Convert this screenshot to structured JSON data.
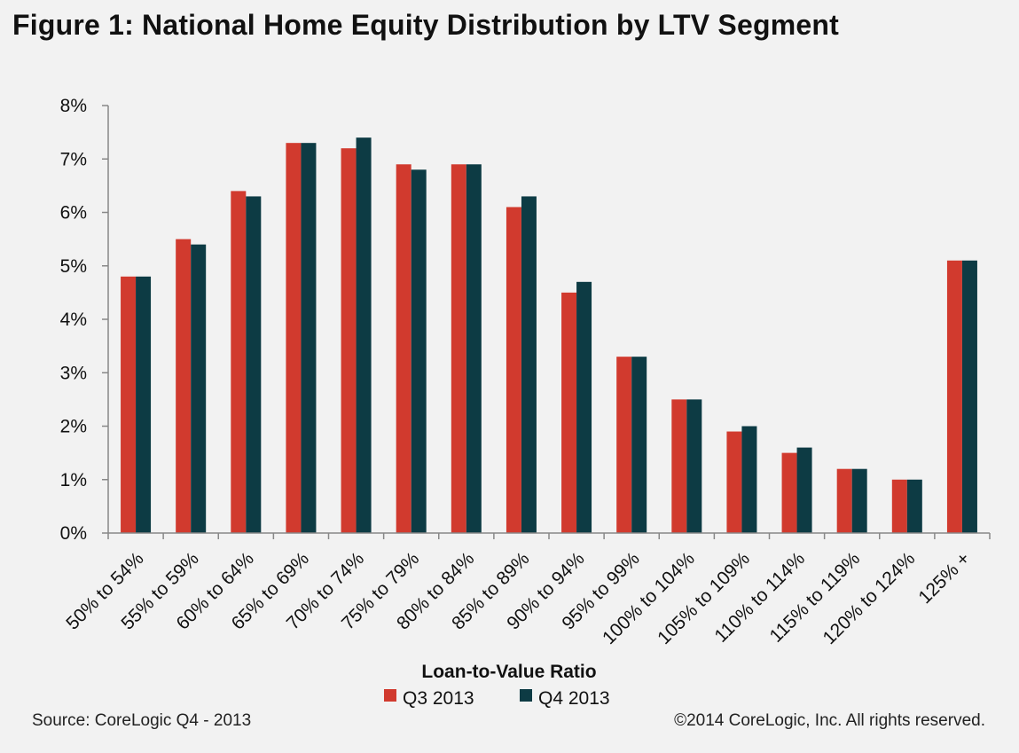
{
  "figure": {
    "title": "Figure 1: National Home Equity Distribution by LTV Segment",
    "source": "Source: CoreLogic Q4 - 2013",
    "copyright": "©2014 CoreLogic, Inc. All rights reserved."
  },
  "colors": {
    "q3": "#d13a2e",
    "q4": "#0d3b44",
    "axis": "#888888",
    "text": "#111111"
  },
  "chart_data": {
    "type": "bar",
    "xlabel": "Loan-to-Value Ratio",
    "ylabel": "",
    "ylim": [
      0,
      8
    ],
    "yticks": [
      "0%",
      "1%",
      "2%",
      "3%",
      "4%",
      "5%",
      "6%",
      "7%",
      "8%"
    ],
    "grid": false,
    "legend_position": "bottom",
    "categories": [
      "50% to 54%",
      "55% to 59%",
      "60% to 64%",
      "65% to 69%",
      "70% to 74%",
      "75% to 79%",
      "80% to 84%",
      "85% to 89%",
      "90% to 94%",
      "95% to 99%",
      "100% to 104%",
      "105% to 109%",
      "110% to 114%",
      "115% to 119%",
      "120% to 124%",
      "125% +"
    ],
    "series": [
      {
        "name": "Q3 2013",
        "values": [
          4.8,
          5.5,
          6.4,
          7.3,
          7.2,
          6.9,
          6.9,
          6.1,
          4.5,
          3.3,
          2.5,
          1.9,
          1.5,
          1.2,
          1.0,
          5.1
        ]
      },
      {
        "name": "Q4 2013",
        "values": [
          4.8,
          5.4,
          6.3,
          7.3,
          7.4,
          6.8,
          6.9,
          6.3,
          4.7,
          3.3,
          2.5,
          2.0,
          1.6,
          1.2,
          1.0,
          5.1
        ]
      }
    ]
  }
}
